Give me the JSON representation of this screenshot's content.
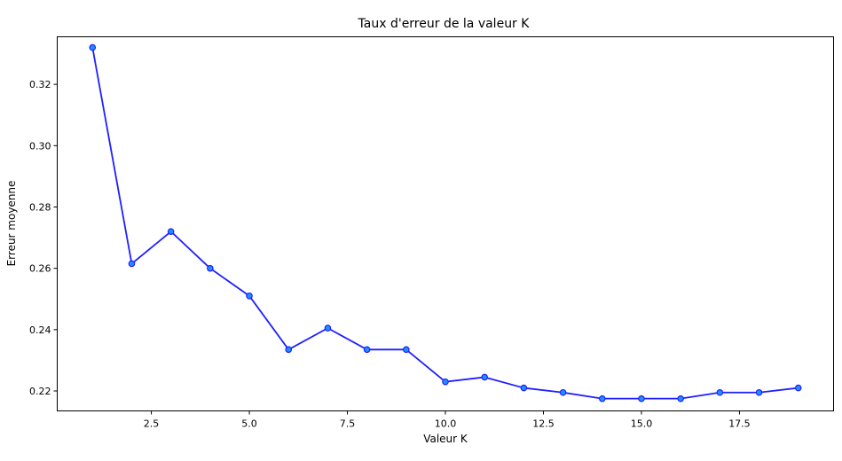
{
  "chart_data": {
    "type": "line",
    "title": "Taux d'erreur de la valeur K",
    "xlabel": "Valeur K",
    "ylabel": "Erreur moyenne",
    "xlim": [
      0.1,
      19.9
    ],
    "ylim": [
      0.2135,
      0.3355
    ],
    "xticks": [
      2.5,
      5.0,
      7.5,
      10.0,
      12.5,
      15.0,
      17.5
    ],
    "xtick_labels": [
      "2.5",
      "5.0",
      "7.5",
      "10.0",
      "12.5",
      "15.0",
      "17.5"
    ],
    "yticks": [
      0.22,
      0.24,
      0.26,
      0.28,
      0.3,
      0.32
    ],
    "ytick_labels": [
      "0.22",
      "0.24",
      "0.26",
      "0.28",
      "0.30",
      "0.32"
    ],
    "grid": false,
    "series": [
      {
        "x": [
          1,
          2,
          3,
          4,
          5,
          6,
          7,
          8,
          9,
          10,
          11,
          12,
          13,
          14,
          15,
          16,
          17,
          18,
          19
        ],
        "y": [
          0.332,
          0.2615,
          0.272,
          0.26,
          0.251,
          0.2335,
          0.2405,
          0.2335,
          0.2335,
          0.223,
          0.2245,
          0.221,
          0.2195,
          0.2175,
          0.2175,
          0.2175,
          0.2195,
          0.2195,
          0.221
        ],
        "line_color": "#1f1fff",
        "marker": "circle",
        "marker_face_color": "#1e90ff",
        "marker_edge_color": "#1f1fff"
      }
    ]
  }
}
